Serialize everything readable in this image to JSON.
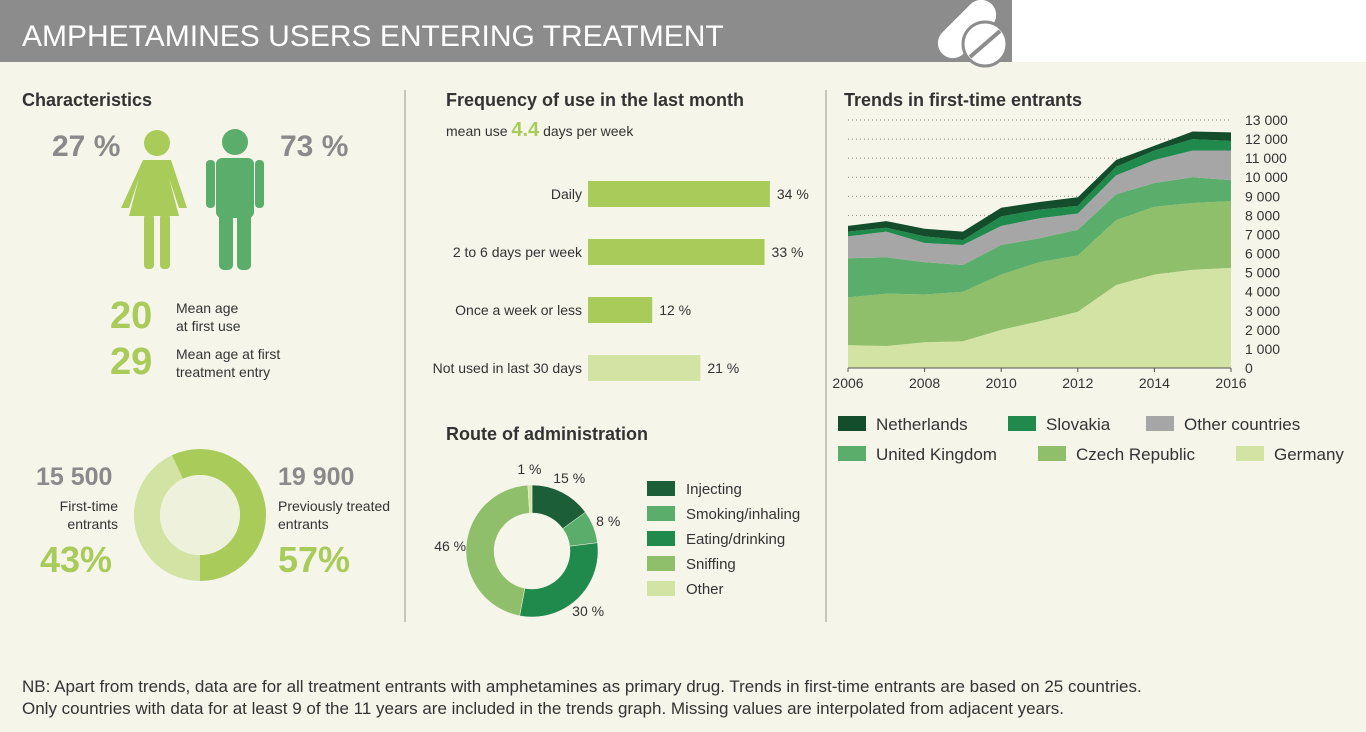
{
  "header": {
    "title": "AMPHETAMINES USERS ENTERING TREATMENT"
  },
  "characteristics": {
    "title": "Characteristics",
    "female": "27 %",
    "male": "73 %",
    "ages": [
      {
        "value": "20",
        "label": [
          "Mean age",
          "at first use"
        ]
      },
      {
        "value": "29",
        "label": [
          "Mean age at first",
          "treatment entry"
        ]
      }
    ],
    "entrants": {
      "type": "donut",
      "counts": [
        "15 500",
        "19 900"
      ],
      "labels": [
        [
          "First-time",
          "entrants"
        ],
        [
          "Previously treated",
          "entrants"
        ]
      ],
      "values": [
        43,
        57
      ],
      "value_labels": [
        "43%",
        "57%"
      ],
      "colors": [
        "#d3e3a4",
        "#a8cb5a"
      ]
    }
  },
  "frequency": {
    "type": "bar",
    "title": "Frequency of use in the last month",
    "subtitle": {
      "before": "mean use",
      "value": "4.4",
      "after": "days per week"
    },
    "categories": [
      "Daily",
      "2 to 6 days per week",
      "Once a week or less",
      "Not used in last 30 days"
    ],
    "values": [
      34,
      33,
      12,
      21
    ],
    "value_labels": [
      "34 %",
      "33 %",
      "12 %",
      "21 %"
    ],
    "colors": [
      "#a8cb5a",
      "#a8cb5a",
      "#a8cb5a",
      "#d3e3a4"
    ]
  },
  "route": {
    "type": "donut",
    "title": "Route of administration",
    "categories": [
      "Injecting",
      "Smoking/inhaling",
      "Eating/drinking",
      "Sniffing",
      "Other"
    ],
    "values": [
      15,
      8,
      30,
      46,
      1
    ],
    "value_labels": [
      "15 %",
      "8 %",
      "30 %",
      "46 %",
      "1 %"
    ],
    "colors": [
      "#1b5e38",
      "#5aad6a",
      "#1f8a4c",
      "#8fbf6a",
      "#d3e3a4"
    ]
  },
  "trends": {
    "type": "stacked-area",
    "title": "Trends in first-time entrants",
    "x": [
      2006,
      2007,
      2008,
      2009,
      2010,
      2011,
      2012,
      2013,
      2014,
      2015,
      2016
    ],
    "xlim": [
      2006,
      2016
    ],
    "xticks": [
      2006,
      2008,
      2010,
      2012,
      2014,
      2016
    ],
    "ylim": [
      0,
      13000
    ],
    "yticks": [
      0,
      {
        "value": 1000,
        "label": "1 000"
      },
      {
        "value": 2000,
        "label": "2 000"
      },
      {
        "value": 3000,
        "label": "3 000"
      },
      {
        "value": 4000,
        "label": "4 000"
      },
      {
        "value": 5000,
        "label": "5 000"
      },
      {
        "value": 6000,
        "label": "6 000"
      },
      {
        "value": 7000,
        "label": "7 000"
      },
      {
        "value": 8000,
        "label": "8 000"
      },
      {
        "value": 9000,
        "label": "9 000"
      },
      {
        "value": 10000,
        "label": "10 000"
      },
      {
        "value": 11000,
        "label": "11 000"
      },
      {
        "value": 12000,
        "label": "12 000"
      },
      {
        "value": 13000,
        "label": "13 000"
      }
    ],
    "grid": true,
    "series": [
      {
        "name": "Netherlands",
        "color": "#134d2c",
        "values": [
          300,
          350,
          400,
          450,
          450,
          400,
          450,
          350,
          250,
          400,
          450
        ]
      },
      {
        "name": "Slovakia",
        "color": "#1f8a4c",
        "values": [
          250,
          200,
          350,
          250,
          500,
          450,
          400,
          450,
          500,
          600,
          500
        ]
      },
      {
        "name": "Other countries",
        "color": "#a6a6a6",
        "values": [
          1150,
          1350,
          1000,
          1050,
          1000,
          1050,
          850,
          1000,
          1200,
          1400,
          1550
        ]
      },
      {
        "name": "United Kingdom",
        "color": "#5aad6a",
        "values": [
          2050,
          1900,
          1700,
          1400,
          1550,
          1250,
          1350,
          1350,
          1250,
          1350,
          1100
        ]
      },
      {
        "name": "Czech Republic",
        "color": "#8fbf6a",
        "values": [
          2500,
          2750,
          2500,
          2600,
          2900,
          3100,
          2950,
          3400,
          3550,
          3500,
          3500
        ]
      },
      {
        "name": "Germany",
        "color": "#d3e3a4",
        "values": [
          1200,
          1150,
          1350,
          1400,
          2000,
          2450,
          2950,
          4350,
          4900,
          5150,
          5250
        ]
      }
    ]
  },
  "note": [
    "NB: Apart from trends, data are for all treatment entrants with amphetamines as primary drug. Trends in first-time entrants are based on 25 countries.",
    "Only countries with data for at least 9 of the 11 years are included in the trends graph. Missing values are interpolated from adjacent years."
  ]
}
